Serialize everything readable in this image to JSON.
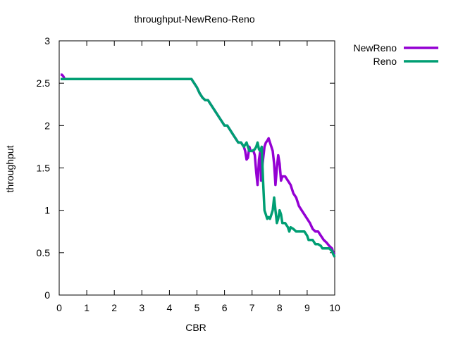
{
  "chart_data": {
    "type": "line",
    "title": "throughput-NewReno-Reno",
    "xlabel": "CBR",
    "ylabel": "throughput",
    "xlim": [
      0,
      10
    ],
    "ylim": [
      0,
      3
    ],
    "xticks": [
      "0",
      "1",
      "2",
      "3",
      "4",
      "5",
      "6",
      "7",
      "8",
      "9",
      "10"
    ],
    "yticks": [
      "0",
      "0.5",
      "1",
      "1.5",
      "2",
      "2.5",
      "3"
    ],
    "grid": false,
    "legend_position": "outside-top-right",
    "series": [
      {
        "name": "NewReno",
        "color": "#9400d3",
        "points": [
          [
            0.05,
            2.6
          ],
          [
            0.1,
            2.6
          ],
          [
            0.15,
            2.58
          ],
          [
            0.2,
            2.55
          ],
          [
            1.0,
            2.55
          ],
          [
            2.0,
            2.55
          ],
          [
            3.0,
            2.55
          ],
          [
            4.0,
            2.55
          ],
          [
            4.8,
            2.55
          ],
          [
            4.9,
            2.5
          ],
          [
            5.0,
            2.45
          ],
          [
            5.1,
            2.38
          ],
          [
            5.2,
            2.33
          ],
          [
            5.3,
            2.3
          ],
          [
            5.4,
            2.3
          ],
          [
            5.5,
            2.25
          ],
          [
            5.6,
            2.2
          ],
          [
            5.7,
            2.15
          ],
          [
            5.8,
            2.1
          ],
          [
            5.9,
            2.05
          ],
          [
            6.0,
            2.0
          ],
          [
            6.1,
            2.0
          ],
          [
            6.2,
            1.95
          ],
          [
            6.3,
            1.9
          ],
          [
            6.4,
            1.85
          ],
          [
            6.5,
            1.8
          ],
          [
            6.6,
            1.8
          ],
          [
            6.7,
            1.75
          ],
          [
            6.75,
            1.7
          ],
          [
            6.8,
            1.6
          ],
          [
            6.85,
            1.62
          ],
          [
            6.9,
            1.75
          ],
          [
            6.95,
            1.7
          ],
          [
            7.0,
            1.7
          ],
          [
            7.05,
            1.7
          ],
          [
            7.1,
            1.65
          ],
          [
            7.15,
            1.45
          ],
          [
            7.2,
            1.3
          ],
          [
            7.25,
            1.6
          ],
          [
            7.3,
            1.7
          ],
          [
            7.33,
            1.35
          ],
          [
            7.38,
            1.55
          ],
          [
            7.45,
            1.75
          ],
          [
            7.5,
            1.8
          ],
          [
            7.55,
            1.82
          ],
          [
            7.6,
            1.85
          ],
          [
            7.65,
            1.8
          ],
          [
            7.7,
            1.75
          ],
          [
            7.75,
            1.7
          ],
          [
            7.8,
            1.55
          ],
          [
            7.85,
            1.3
          ],
          [
            7.9,
            1.5
          ],
          [
            7.95,
            1.65
          ],
          [
            8.0,
            1.55
          ],
          [
            8.05,
            1.35
          ],
          [
            8.1,
            1.4
          ],
          [
            8.2,
            1.4
          ],
          [
            8.3,
            1.35
          ],
          [
            8.4,
            1.3
          ],
          [
            8.5,
            1.2
          ],
          [
            8.6,
            1.15
          ],
          [
            8.7,
            1.05
          ],
          [
            8.8,
            1.0
          ],
          [
            8.9,
            0.95
          ],
          [
            9.0,
            0.9
          ],
          [
            9.1,
            0.85
          ],
          [
            9.2,
            0.78
          ],
          [
            9.3,
            0.75
          ],
          [
            9.4,
            0.75
          ],
          [
            9.5,
            0.7
          ],
          [
            9.6,
            0.65
          ],
          [
            9.7,
            0.62
          ],
          [
            9.8,
            0.58
          ],
          [
            9.9,
            0.55
          ],
          [
            9.95,
            0.5
          ],
          [
            10.0,
            0.48
          ]
        ]
      },
      {
        "name": "Reno",
        "color": "#009e73",
        "points": [
          [
            0.05,
            2.55
          ],
          [
            0.5,
            2.55
          ],
          [
            1.0,
            2.55
          ],
          [
            2.0,
            2.55
          ],
          [
            3.0,
            2.55
          ],
          [
            4.0,
            2.55
          ],
          [
            4.8,
            2.55
          ],
          [
            4.9,
            2.5
          ],
          [
            5.0,
            2.45
          ],
          [
            5.1,
            2.38
          ],
          [
            5.2,
            2.33
          ],
          [
            5.3,
            2.3
          ],
          [
            5.4,
            2.3
          ],
          [
            5.5,
            2.25
          ],
          [
            5.6,
            2.2
          ],
          [
            5.7,
            2.15
          ],
          [
            5.8,
            2.1
          ],
          [
            5.9,
            2.05
          ],
          [
            6.0,
            2.0
          ],
          [
            6.1,
            2.0
          ],
          [
            6.2,
            1.95
          ],
          [
            6.3,
            1.9
          ],
          [
            6.4,
            1.85
          ],
          [
            6.5,
            1.8
          ],
          [
            6.6,
            1.8
          ],
          [
            6.7,
            1.75
          ],
          [
            6.8,
            1.8
          ],
          [
            6.85,
            1.75
          ],
          [
            6.9,
            1.7
          ],
          [
            7.0,
            1.7
          ],
          [
            7.1,
            1.72
          ],
          [
            7.15,
            1.75
          ],
          [
            7.2,
            1.8
          ],
          [
            7.25,
            1.72
          ],
          [
            7.3,
            1.7
          ],
          [
            7.35,
            1.75
          ],
          [
            7.4,
            1.35
          ],
          [
            7.45,
            1.0
          ],
          [
            7.5,
            0.95
          ],
          [
            7.55,
            0.9
          ],
          [
            7.6,
            0.92
          ],
          [
            7.65,
            0.9
          ],
          [
            7.7,
            0.95
          ],
          [
            7.75,
            1.0
          ],
          [
            7.8,
            1.15
          ],
          [
            7.85,
            1.0
          ],
          [
            7.9,
            0.85
          ],
          [
            7.95,
            0.9
          ],
          [
            8.0,
            1.0
          ],
          [
            8.05,
            0.95
          ],
          [
            8.1,
            0.85
          ],
          [
            8.2,
            0.85
          ],
          [
            8.3,
            0.8
          ],
          [
            8.35,
            0.75
          ],
          [
            8.4,
            0.8
          ],
          [
            8.5,
            0.78
          ],
          [
            8.6,
            0.75
          ],
          [
            8.7,
            0.75
          ],
          [
            8.8,
            0.75
          ],
          [
            8.9,
            0.75
          ],
          [
            9.0,
            0.7
          ],
          [
            9.05,
            0.65
          ],
          [
            9.2,
            0.65
          ],
          [
            9.3,
            0.6
          ],
          [
            9.4,
            0.6
          ],
          [
            9.5,
            0.58
          ],
          [
            9.55,
            0.55
          ],
          [
            9.7,
            0.55
          ],
          [
            9.8,
            0.55
          ],
          [
            9.9,
            0.52
          ],
          [
            9.95,
            0.48
          ],
          [
            10.0,
            0.45
          ]
        ]
      }
    ]
  }
}
